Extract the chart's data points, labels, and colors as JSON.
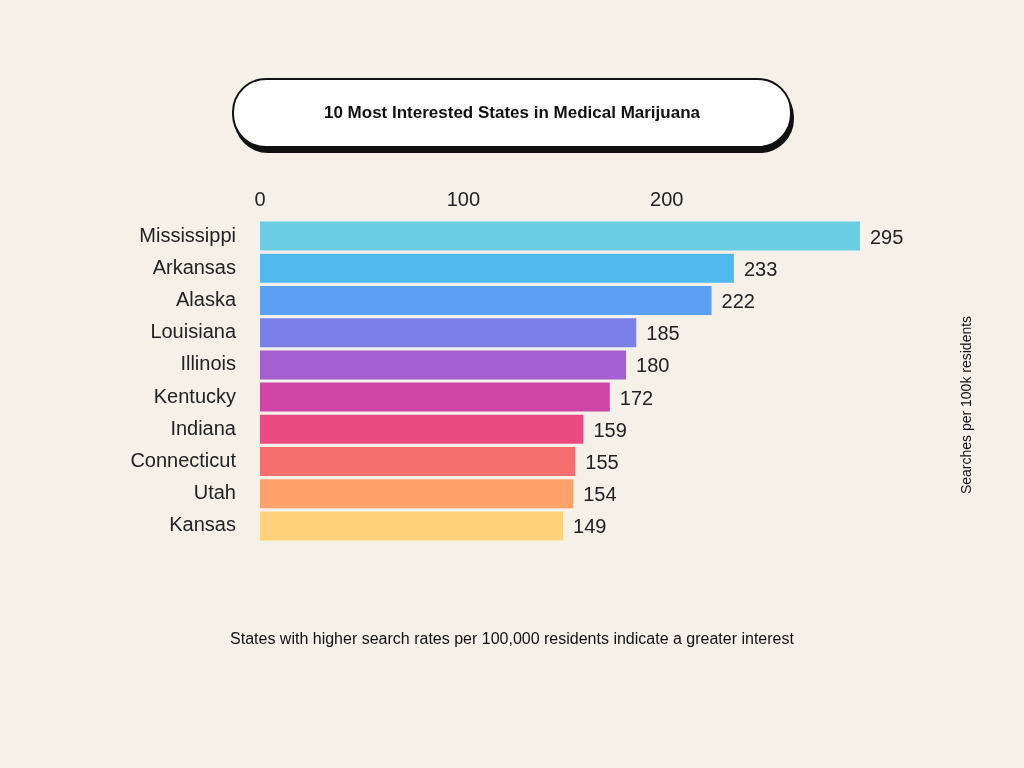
{
  "chart_data": {
    "type": "bar",
    "orientation": "horizontal",
    "title": "10 Most Interested States in Medical Marijuana",
    "categories": [
      "Mississippi",
      "Arkansas",
      "Alaska",
      "Louisiana",
      "Illinois",
      "Kentucky",
      "Indiana",
      "Connecticut",
      "Utah",
      "Kansas"
    ],
    "values": [
      295,
      233,
      222,
      185,
      180,
      172,
      159,
      155,
      154,
      149
    ],
    "colors": [
      "#6acde3",
      "#4fb8ec",
      "#5a9ff2",
      "#7a80e8",
      "#a45fd0",
      "#cf45a6",
      "#ea4a7f",
      "#f76e6e",
      "#ffa168",
      "#ffd37a"
    ],
    "xlim": [
      0,
      295
    ],
    "xticks": [
      0,
      100,
      200
    ],
    "grid": false,
    "legend": false,
    "data_labels": true,
    "annotations": [
      "States with higher search rates per 100,000 residents indicate a greater interest",
      "Searches per 100k residents"
    ]
  }
}
